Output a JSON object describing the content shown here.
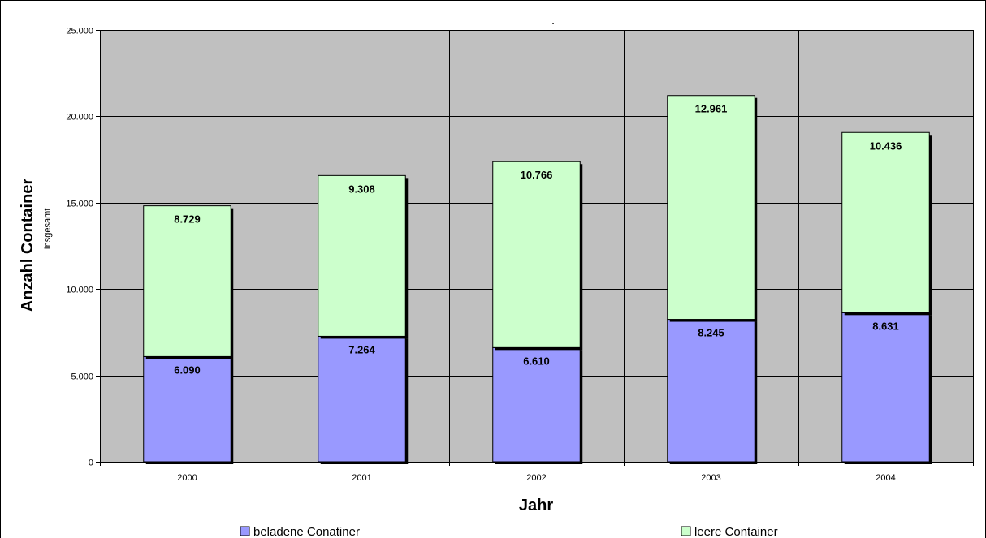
{
  "chart_data": {
    "type": "bar",
    "stacked": true,
    "categories": [
      "2000",
      "2001",
      "2002",
      "2003",
      "2004"
    ],
    "series": [
      {
        "name": "beladene Conatiner",
        "values": [
          6090,
          7264,
          6610,
          8245,
          8631
        ],
        "labels": [
          "6.090",
          "7.264",
          "6.610",
          "8.245",
          "8.631"
        ],
        "color": "#9999ff"
      },
      {
        "name": "leere Container",
        "values": [
          8729,
          9308,
          10766,
          12961,
          10436
        ],
        "labels": [
          "8.729",
          "9.308",
          "10.766",
          "12.961",
          "10.436"
        ],
        "color": "#ccffcc"
      }
    ],
    "title": "",
    "title_mark": ".",
    "xlabel": "Jahr",
    "ylabel": "Anzahl Container",
    "ylabel_sub": "Insgesamt",
    "ylim": [
      0,
      25000
    ],
    "yticks": [
      0,
      5000,
      10000,
      15000,
      20000,
      25000
    ],
    "ytick_labels": [
      "0",
      "5.000",
      "10.000",
      "15.000",
      "20.000",
      "25.000"
    ],
    "grid": true,
    "plot_background": "#c0c0c0",
    "legend_position": "bottom"
  }
}
